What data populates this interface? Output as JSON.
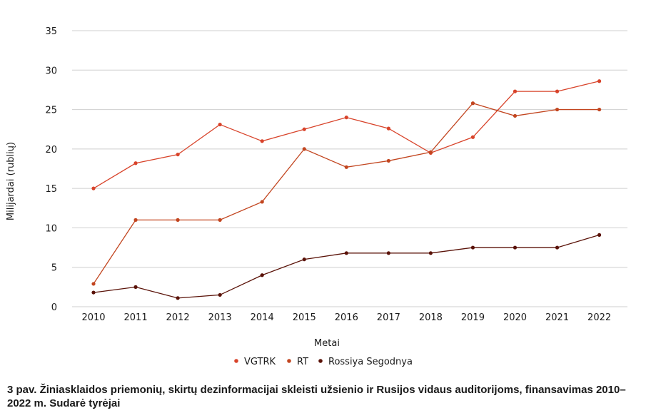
{
  "chart_data": {
    "type": "line",
    "title": "",
    "xlabel": "Metai",
    "ylabel": "Milijardai (rublių)",
    "ylim": [
      0,
      35
    ],
    "yticks": [
      0,
      5,
      10,
      15,
      20,
      25,
      30,
      35
    ],
    "grid": true,
    "legend_position": "bottom-center",
    "categories": [
      "2010",
      "2011",
      "2012",
      "2013",
      "2014",
      "2015",
      "2016",
      "2017",
      "2018",
      "2019",
      "2020",
      "2021",
      "2022"
    ],
    "series": [
      {
        "name": "VGTRK",
        "color": "#d8432a",
        "values": [
          15.0,
          18.2,
          19.3,
          23.1,
          21.0,
          22.5,
          24.0,
          22.6,
          19.5,
          21.5,
          27.3,
          27.3,
          28.6
        ]
      },
      {
        "name": "RT",
        "color": "#c2451f",
        "values": [
          2.9,
          11.0,
          11.0,
          11.0,
          13.3,
          20.0,
          17.7,
          18.5,
          19.6,
          25.8,
          24.2,
          25.0,
          25.0
        ]
      },
      {
        "name": "Rossiya Segodnya",
        "color": "#5a1208",
        "values": [
          1.8,
          2.5,
          1.1,
          1.5,
          4.0,
          6.0,
          6.8,
          6.8,
          6.8,
          7.5,
          7.5,
          7.5,
          9.1
        ]
      }
    ]
  },
  "caption": "3 pav. Žiniasklaidos priemonių, skirtų dezinformacijai skleisti užsienio ir Rusijos vidaus auditorijoms, finansavimas 2010–2022 m. Sudarė tyrėjai"
}
